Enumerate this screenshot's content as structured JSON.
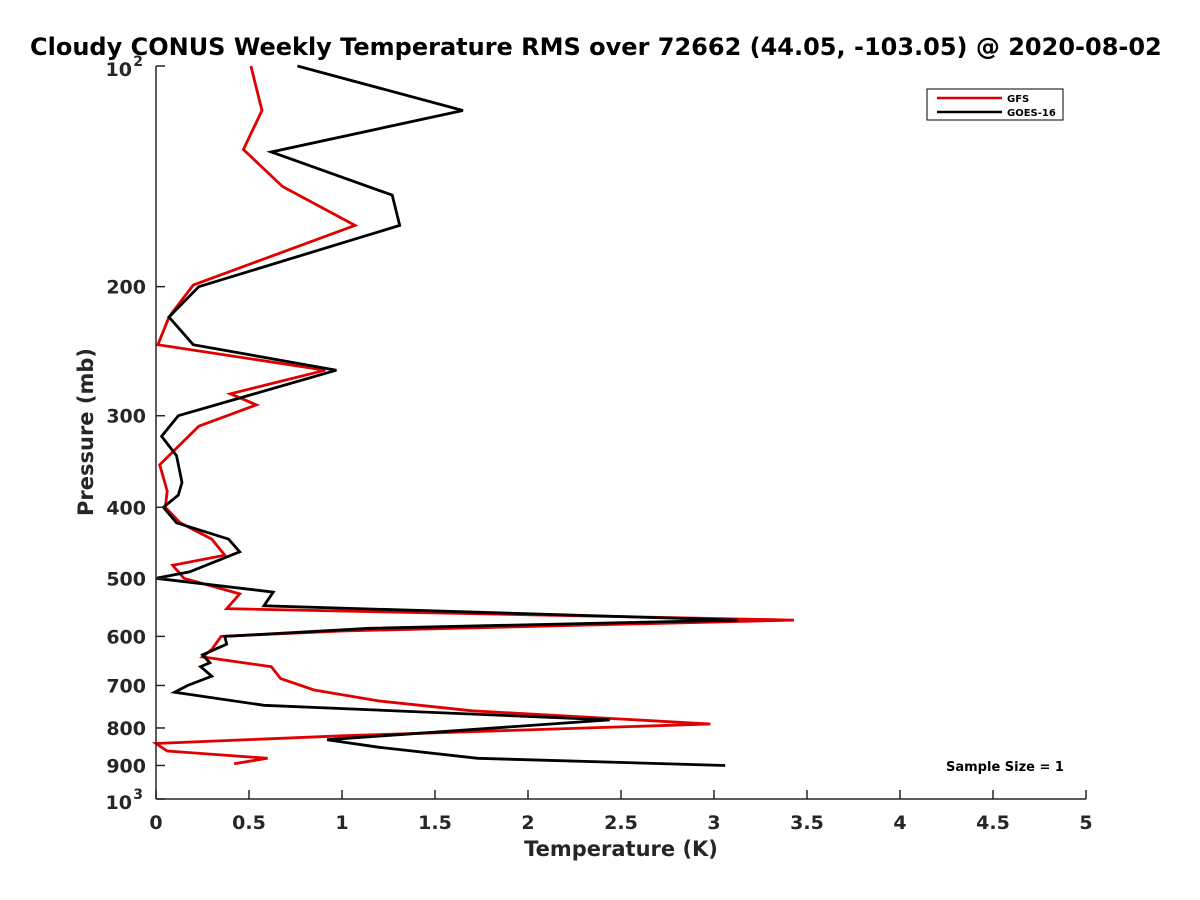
{
  "chart_data": {
    "type": "line",
    "title": "Cloudy CONUS Weekly Temperature RMS over 72662 (44.05, -103.05) @ 2020-08-02",
    "xlabel": "Temperature (K)",
    "ylabel": "Pressure (mb)",
    "xlim": [
      0,
      5
    ],
    "ylim": [
      100,
      1000
    ],
    "y_scale": "log",
    "y_reversed": true,
    "grid": false,
    "legend_position": "top-right",
    "x_ticks": [
      "0",
      "0.5",
      "1",
      "1.5",
      "2",
      "2.5",
      "3",
      "3.5",
      "4",
      "4.5",
      "5"
    ],
    "y_ticks": [
      {
        "value": 100,
        "base": "10",
        "exp": "2"
      },
      {
        "value": 200,
        "label": "200"
      },
      {
        "value": 300,
        "label": "300"
      },
      {
        "value": 400,
        "label": "400"
      },
      {
        "value": 500,
        "label": "500"
      },
      {
        "value": 600,
        "label": "600"
      },
      {
        "value": 700,
        "label": "700"
      },
      {
        "value": 800,
        "label": "800"
      },
      {
        "value": 900,
        "label": "900"
      },
      {
        "value": 1000,
        "base": "10",
        "exp": "3"
      }
    ],
    "annotation": "Sample Size = 1",
    "series": [
      {
        "name": "GFS",
        "color": "#e00000",
        "points": [
          [
            0.51,
            100
          ],
          [
            0.57,
            115
          ],
          [
            0.47,
            130
          ],
          [
            0.68,
            146
          ],
          [
            1.07,
            165
          ],
          [
            0.2,
            199
          ],
          [
            0.07,
            220
          ],
          [
            0.01,
            240
          ],
          [
            0.91,
            260
          ],
          [
            0.4,
            280
          ],
          [
            0.54,
            290
          ],
          [
            0.23,
            310
          ],
          [
            0.02,
            350
          ],
          [
            0.06,
            380
          ],
          [
            0.05,
            400
          ],
          [
            0.13,
            420
          ],
          [
            0.3,
            442
          ],
          [
            0.37,
            465
          ],
          [
            0.09,
            480
          ],
          [
            0.15,
            500
          ],
          [
            0.45,
            525
          ],
          [
            0.38,
            550
          ],
          [
            3.43,
            570
          ],
          [
            1.0,
            590
          ],
          [
            0.35,
            600
          ],
          [
            0.3,
            625
          ],
          [
            0.25,
            640
          ],
          [
            0.62,
            660
          ],
          [
            0.67,
            685
          ],
          [
            0.85,
            710
          ],
          [
            1.2,
            735
          ],
          [
            1.7,
            758
          ],
          [
            2.98,
            790
          ],
          [
            1.0,
            820
          ],
          [
            0.0,
            840
          ],
          [
            0.06,
            860
          ],
          [
            0.6,
            880
          ],
          [
            0.42,
            895
          ]
        ]
      },
      {
        "name": "GOES-16",
        "color": "#000000",
        "points": [
          [
            0.76,
            100
          ],
          [
            1.65,
            115
          ],
          [
            0.62,
            131
          ],
          [
            1.27,
            150
          ],
          [
            1.31,
            165
          ],
          [
            0.23,
            200
          ],
          [
            0.07,
            220
          ],
          [
            0.2,
            240
          ],
          [
            0.97,
            260
          ],
          [
            0.12,
            300
          ],
          [
            0.03,
            320
          ],
          [
            0.11,
            340
          ],
          [
            0.14,
            370
          ],
          [
            0.12,
            385
          ],
          [
            0.04,
            400
          ],
          [
            0.11,
            420
          ],
          [
            0.39,
            442
          ],
          [
            0.45,
            460
          ],
          [
            0.18,
            490
          ],
          [
            0.0,
            500
          ],
          [
            0.63,
            522
          ],
          [
            0.58,
            545
          ],
          [
            3.13,
            570
          ],
          [
            1.15,
            585
          ],
          [
            0.37,
            600
          ],
          [
            0.38,
            615
          ],
          [
            0.25,
            636
          ],
          [
            0.29,
            652
          ],
          [
            0.24,
            660
          ],
          [
            0.3,
            680
          ],
          [
            0.17,
            700
          ],
          [
            0.1,
            715
          ],
          [
            0.58,
            745
          ],
          [
            2.44,
            780
          ],
          [
            0.92,
            830
          ],
          [
            1.2,
            850
          ],
          [
            1.73,
            880
          ],
          [
            3.06,
            900
          ]
        ]
      }
    ]
  }
}
